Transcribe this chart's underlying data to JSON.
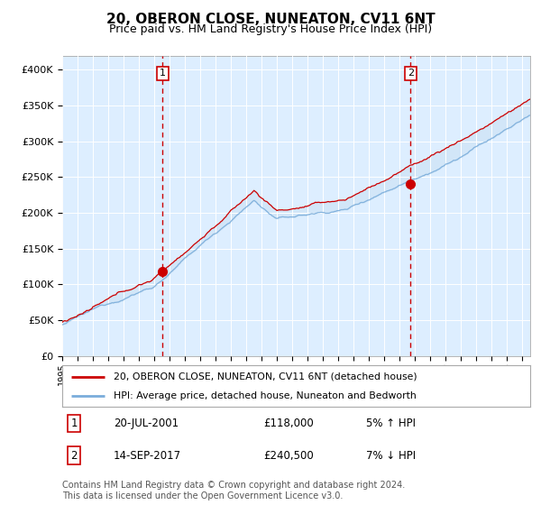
{
  "title": "20, OBERON CLOSE, NUNEATON, CV11 6NT",
  "subtitle": "Price paid vs. HM Land Registry's House Price Index (HPI)",
  "title_fontsize": 11,
  "subtitle_fontsize": 9,
  "ylim": [
    0,
    420000
  ],
  "yticks": [
    0,
    50000,
    100000,
    150000,
    200000,
    250000,
    300000,
    350000,
    400000
  ],
  "ytick_labels": [
    "£0",
    "£50K",
    "£100K",
    "£150K",
    "£200K",
    "£250K",
    "£300K",
    "£350K",
    "£400K"
  ],
  "sale1_year": 2001.55,
  "sale1_price": 118000,
  "sale1_label": "1",
  "sale2_year": 2017.71,
  "sale2_price": 240500,
  "sale2_label": "2",
  "line_color_price": "#cc0000",
  "line_color_hpi": "#7aaddb",
  "fill_color_hpi": "#c8dff2",
  "dashed_line_color": "#cc0000",
  "dot_color": "#cc0000",
  "plot_bg_color": "#ddeeff",
  "grid_color": "#ffffff",
  "legend_label1": "20, OBERON CLOSE, NUNEATON, CV11 6NT (detached house)",
  "legend_label2": "HPI: Average price, detached house, Nuneaton and Bedworth",
  "footer": "Contains HM Land Registry data © Crown copyright and database right 2024.\nThis data is licensed under the Open Government Licence v3.0.",
  "footer_fontsize": 7,
  "table_row1": [
    "1",
    "20-JUL-2001",
    "£118,000",
    "5% ↑ HPI"
  ],
  "table_row2": [
    "2",
    "14-SEP-2017",
    "£240,500",
    "7% ↓ HPI"
  ]
}
